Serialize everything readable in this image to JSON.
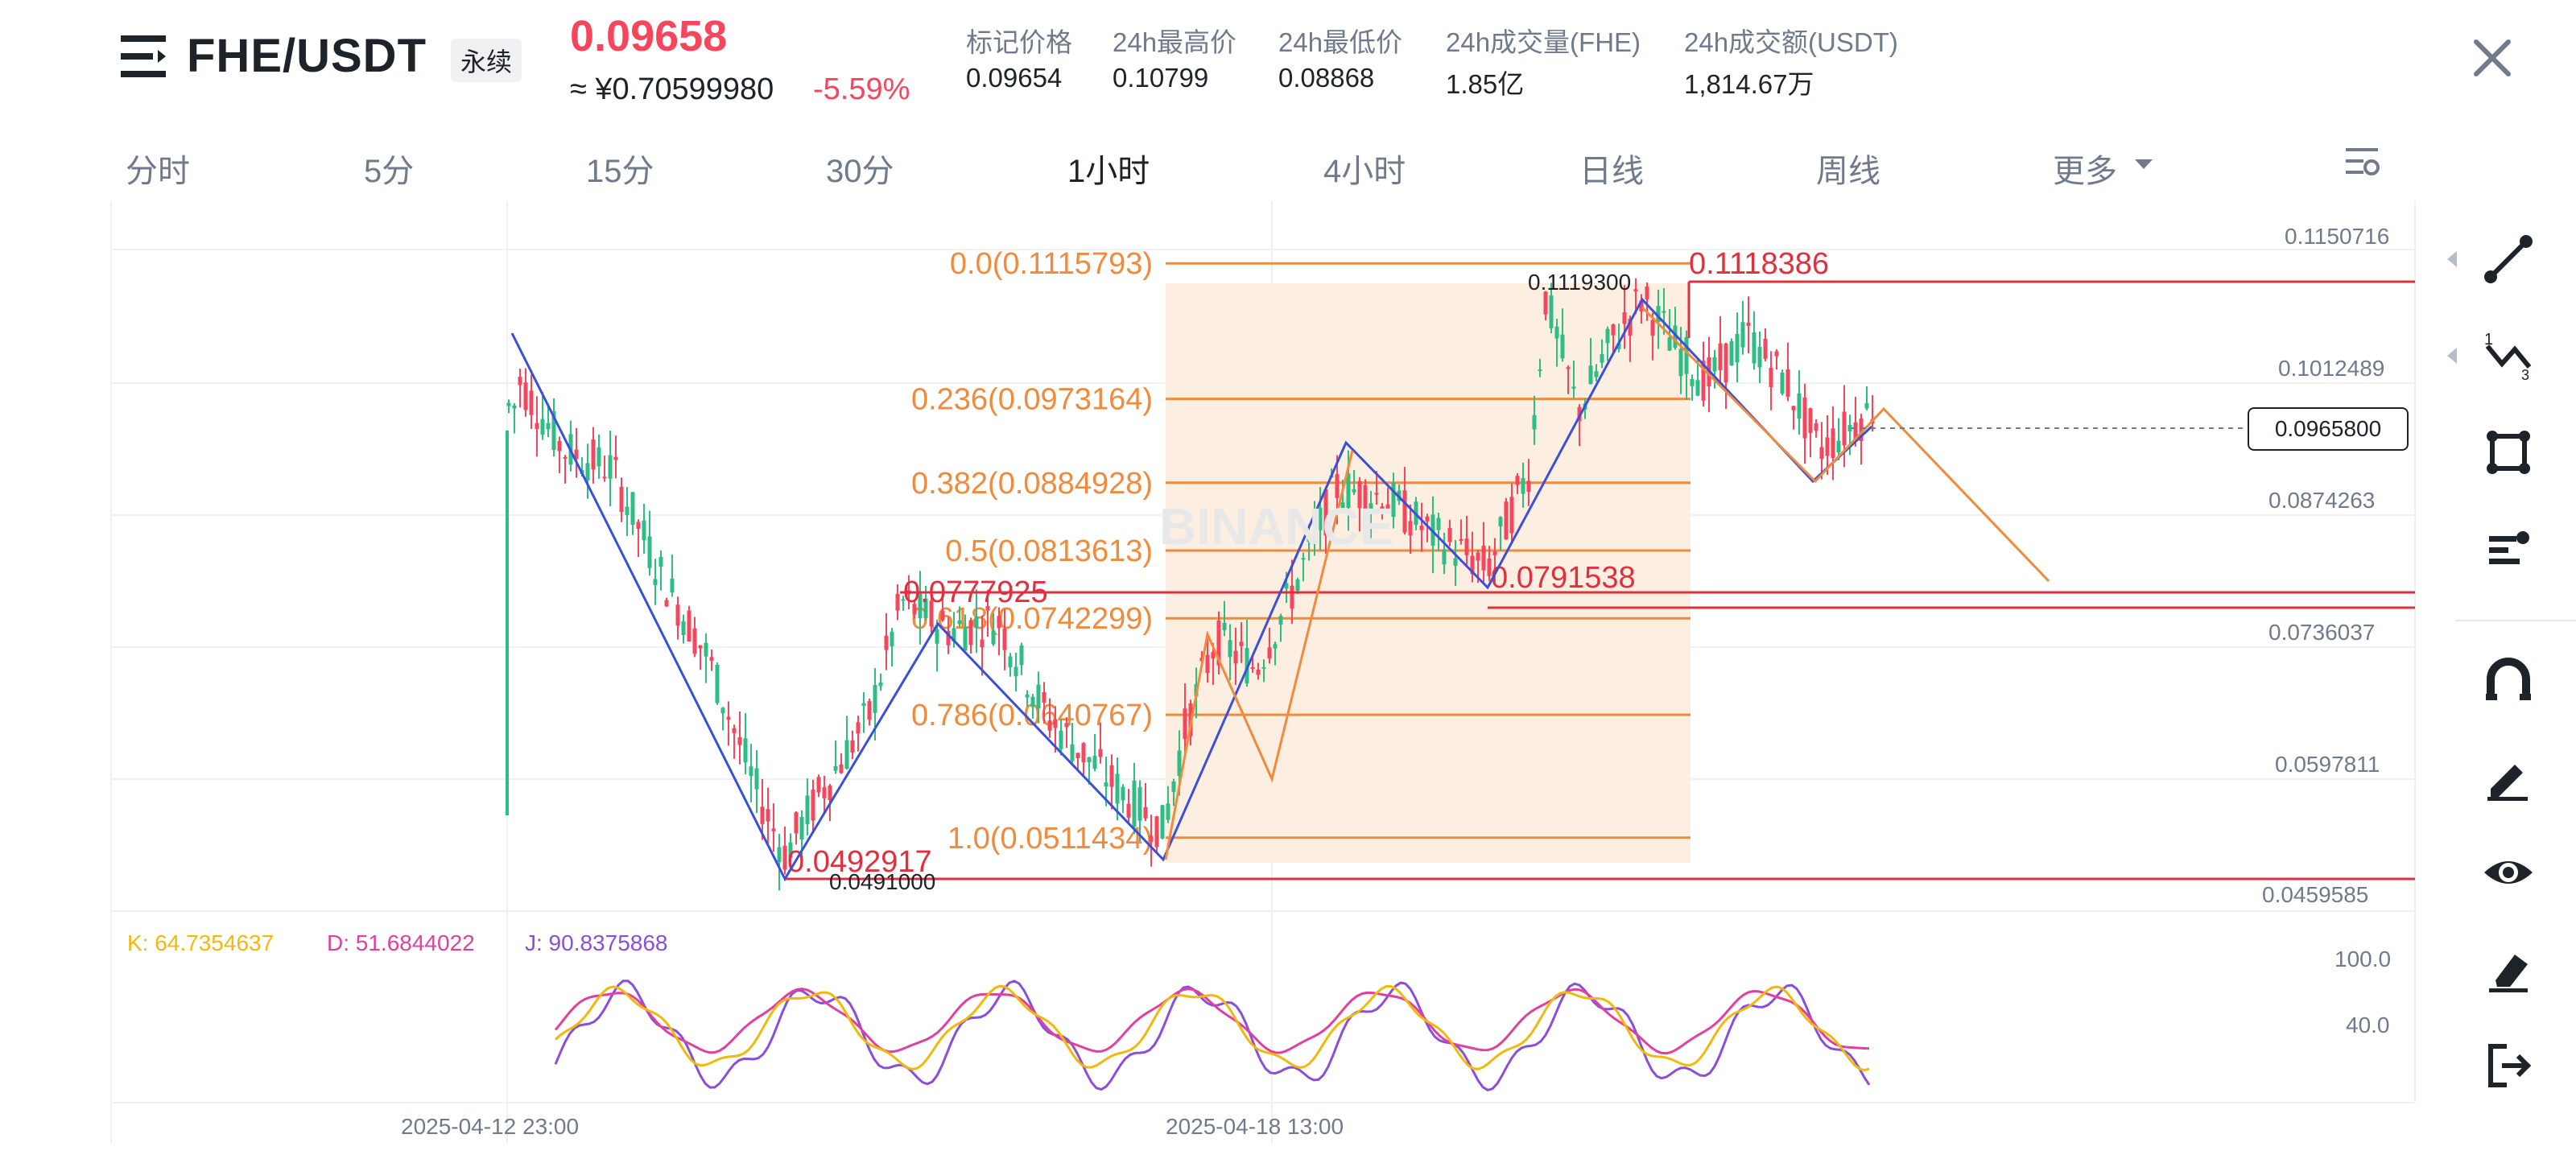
{
  "header": {
    "symbol": "FHE/USDT",
    "contract_type": "永续",
    "last_price": "0.09658",
    "cny_price": "≈ ¥0.70599980",
    "change_pct": "-5.59%",
    "stats": [
      {
        "label": "标记价格",
        "value": "0.09654"
      },
      {
        "label": "24h最高价",
        "value": "0.10799"
      },
      {
        "label": "24h最低价",
        "value": "0.08868"
      },
      {
        "label": "24h成交量(FHE)",
        "value": "1.85亿"
      },
      {
        "label": "24h成交额(USDT)",
        "value": "1,814.67万"
      }
    ]
  },
  "timeframes": [
    {
      "label": "分时",
      "active": false
    },
    {
      "label": "5分",
      "active": false
    },
    {
      "label": "15分",
      "active": false
    },
    {
      "label": "30分",
      "active": false
    },
    {
      "label": "1小时",
      "active": true
    },
    {
      "label": "4小时",
      "active": false
    },
    {
      "label": "日线",
      "active": false
    },
    {
      "label": "周线",
      "active": false
    },
    {
      "label": "更多",
      "active": false
    }
  ],
  "price_axis": [
    "0.1150716",
    "0.1012489",
    "0.0874263",
    "0.0736037",
    "0.0597811",
    "0.0459585"
  ],
  "current_price_tag": "0.0965800",
  "fibonacci": [
    {
      "label": "0.0(0.1115793)",
      "level": 0.0,
      "price": 0.1115793
    },
    {
      "label": "0.236(0.0973164)",
      "level": 0.236,
      "price": 0.0973164
    },
    {
      "label": "0.382(0.0884928)",
      "level": 0.382,
      "price": 0.0884928
    },
    {
      "label": "0.5(0.0813613)",
      "level": 0.5,
      "price": 0.0813613
    },
    {
      "label": "0.618(0.0742299)",
      "level": 0.618,
      "price": 0.0742299
    },
    {
      "label": "0.786(0.0640767)",
      "level": 0.786,
      "price": 0.0640767
    },
    {
      "label": "1.0(0.0511434)",
      "level": 1.0,
      "price": 0.0511434
    }
  ],
  "horizontal_lines": [
    {
      "label": "0.1118386",
      "price": 0.1118386
    },
    {
      "label": "0.0777925",
      "price": 0.0777925
    },
    {
      "label": "0.0791538",
      "price": 0.0791538
    },
    {
      "label": "0.0492917",
      "price": 0.0492917
    }
  ],
  "high_label": "0.1119300",
  "low_label": "0.0491000",
  "watermark": "BINANCE",
  "kdj": {
    "k": "K: 64.7354637",
    "d": "D: 51.6844022",
    "j": "J: 90.8375868",
    "axis": [
      "100.0",
      "40.0"
    ]
  },
  "time_axis": [
    "2025-04-12 23:00",
    "2025-04-18 13:00"
  ],
  "colors": {
    "up": "#2ebd85",
    "down": "#f6465d",
    "fib": "#f08a3c",
    "trend": "#3b4fd8",
    "k": "#f0b90b",
    "d": "#e040a0",
    "j": "#8a4fd8"
  },
  "tools": [
    "trend-line-icon",
    "fib-tool-icon",
    "rectangle-icon",
    "text-tool-icon",
    "magnet-icon",
    "pencil-icon",
    "visibility-icon",
    "eraser-icon",
    "exit-icon"
  ]
}
